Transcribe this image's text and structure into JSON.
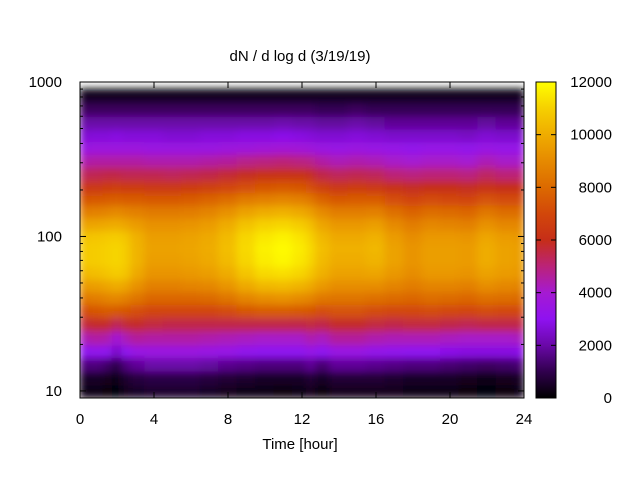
{
  "chart_data": {
    "type": "heatmap",
    "title": "dN / d log d (3/19/19)",
    "xlabel": "Time [hour]",
    "ylabel": "",
    "xlim": [
      0,
      24
    ],
    "ylim": [
      9,
      1000
    ],
    "y_scale": "log",
    "x_ticks": [
      0,
      4,
      8,
      12,
      16,
      20,
      24
    ],
    "x_tick_labels": [
      "0",
      "4",
      "8",
      "12",
      "16",
      "20",
      "24"
    ],
    "y_ticks": [
      10,
      100,
      1000
    ],
    "y_tick_labels": [
      "10",
      "100",
      "1000"
    ],
    "colorbar": {
      "range": [
        0,
        12000
      ],
      "ticks": [
        0,
        2000,
        4000,
        6000,
        8000,
        10000,
        12000
      ],
      "tick_labels": [
        "0",
        "2000",
        "4000",
        "6000",
        "8000",
        "10000",
        "12000"
      ],
      "colormap": "gnuplot-heat (black-purple-red-orange-yellow)"
    },
    "data_extent": {
      "x": [
        0,
        24
      ],
      "y": [
        9,
        900
      ]
    },
    "grid": false,
    "legend": "none",
    "y_bins": [
      10,
      12,
      15,
      18,
      22,
      27,
      33,
      40,
      48,
      58,
      70,
      85,
      100,
      120,
      145,
      175,
      210,
      255,
      310,
      375,
      450,
      545,
      660,
      800,
      900
    ],
    "x_bins": [
      0,
      1,
      1.5,
      2,
      2.5,
      3,
      4,
      5,
      6,
      7,
      8,
      9,
      10,
      11,
      12,
      12.5,
      13,
      14,
      15,
      16,
      17,
      18,
      19,
      20,
      21,
      22,
      23,
      24
    ],
    "z": [
      [
        300,
        500,
        1500,
        3000,
        4300,
        5600,
        7200,
        8400,
        9400,
        10300,
        10800,
        10800,
        10600,
        9700,
        8600,
        7400,
        6300,
        5300,
        4400,
        3500,
        2600,
        2000,
        1200,
        500,
        0
      ],
      [
        300,
        500,
        1500,
        3100,
        4500,
        5800,
        7400,
        8600,
        9600,
        10500,
        10900,
        10900,
        10700,
        9800,
        8700,
        7500,
        6400,
        5400,
        4500,
        3600,
        2700,
        2000,
        1200,
        500,
        0
      ],
      [
        200,
        400,
        1300,
        3000,
        4400,
        5800,
        7600,
        8800,
        9800,
        10700,
        11000,
        11000,
        10800,
        9900,
        8800,
        7600,
        6500,
        5500,
        4500,
        3600,
        2700,
        2000,
        1200,
        500,
        0
      ],
      [
        100,
        300,
        900,
        2400,
        3800,
        5300,
        7500,
        8900,
        10000,
        10900,
        11100,
        11100,
        10900,
        10000,
        9000,
        7700,
        6600,
        5500,
        4500,
        3600,
        2800,
        2000,
        1200,
        500,
        0
      ],
      [
        400,
        600,
        1500,
        3000,
        4300,
        5700,
        7400,
        8700,
        9800,
        10700,
        10900,
        10900,
        10700,
        9800,
        8800,
        7600,
        6500,
        5400,
        4500,
        3600,
        2700,
        2000,
        1200,
        500,
        0
      ],
      [
        500,
        800,
        1800,
        3400,
        4600,
        5800,
        7200,
        8300,
        9200,
        9900,
        10200,
        10200,
        10100,
        9500,
        8700,
        7600,
        6500,
        5400,
        4500,
        3600,
        2700,
        2000,
        1200,
        500,
        0
      ],
      [
        600,
        900,
        2000,
        3500,
        4500,
        5600,
        6900,
        7900,
        8700,
        9300,
        9600,
        9700,
        9600,
        9200,
        8500,
        7500,
        6400,
        5400,
        4400,
        3500,
        2700,
        2000,
        1200,
        500,
        0
      ],
      [
        600,
        900,
        2000,
        3500,
        4500,
        5500,
        6900,
        7900,
        8700,
        9300,
        9600,
        9700,
        9600,
        9200,
        8500,
        7500,
        6400,
        5300,
        4400,
        3500,
        2600,
        2000,
        1200,
        500,
        0
      ],
      [
        600,
        900,
        2000,
        3500,
        4500,
        5500,
        6900,
        7900,
        8800,
        9400,
        9700,
        9800,
        9700,
        9300,
        8600,
        7600,
        6500,
        5400,
        4400,
        3500,
        2600,
        2000,
        1200,
        500,
        0
      ],
      [
        500,
        800,
        1900,
        3400,
        4400,
        5500,
        6900,
        8000,
        8900,
        9600,
        9900,
        10000,
        9900,
        9500,
        8800,
        7800,
        6700,
        5500,
        4500,
        3500,
        2700,
        2000,
        1200,
        500,
        0
      ],
      [
        400,
        700,
        1700,
        3300,
        4300,
        5500,
        7100,
        8300,
        9300,
        10000,
        10400,
        10500,
        10400,
        10000,
        9200,
        8100,
        6900,
        5700,
        4600,
        3600,
        2700,
        2000,
        1200,
        500,
        0
      ],
      [
        300,
        600,
        1600,
        3100,
        4200,
        5500,
        7400,
        8800,
        9900,
        10700,
        11100,
        11200,
        11100,
        10600,
        9700,
        8500,
        7200,
        5900,
        4800,
        3700,
        2800,
        2000,
        1200,
        500,
        0
      ],
      [
        300,
        500,
        1500,
        3000,
        4100,
        5500,
        7600,
        9100,
        10300,
        11200,
        11600,
        11700,
        11500,
        11000,
        10000,
        8700,
        7400,
        6100,
        4900,
        3800,
        2800,
        2000,
        1200,
        500,
        0
      ],
      [
        200,
        500,
        1500,
        3000,
        4100,
        5500,
        7600,
        9200,
        10400,
        11300,
        11800,
        11900,
        11700,
        11100,
        10100,
        8800,
        7500,
        6200,
        5000,
        3900,
        2900,
        2100,
        1200,
        500,
        0
      ],
      [
        300,
        500,
        1500,
        3000,
        4100,
        5500,
        7500,
        9000,
        10200,
        11100,
        11500,
        11600,
        11400,
        10900,
        9900,
        8700,
        7400,
        6100,
        4900,
        3800,
        2800,
        2000,
        1200,
        500,
        0
      ],
      [
        400,
        700,
        1800,
        3300,
        4400,
        5600,
        7400,
        8800,
        9900,
        10700,
        11100,
        11200,
        11000,
        10500,
        9600,
        8400,
        7200,
        5900,
        4800,
        3700,
        2700,
        2000,
        1200,
        500,
        0
      ],
      [
        200,
        500,
        1400,
        3000,
        4200,
        5500,
        7200,
        8400,
        9400,
        10100,
        10400,
        10500,
        10300,
        9800,
        9000,
        7800,
        6700,
        5500,
        4500,
        3500,
        2600,
        1900,
        1100,
        500,
        0
      ],
      [
        400,
        700,
        1800,
        3400,
        4600,
        5800,
        7300,
        8300,
        9100,
        9700,
        10000,
        10100,
        9900,
        9400,
        8600,
        7500,
        6400,
        5300,
        4300,
        3400,
        2600,
        1900,
        1100,
        500,
        0
      ],
      [
        400,
        700,
        1800,
        3400,
        4600,
        5800,
        7300,
        8300,
        9100,
        9700,
        10000,
        10100,
        9900,
        9400,
        8600,
        7600,
        6500,
        5400,
        4400,
        3500,
        2700,
        2000,
        1200,
        500,
        0
      ],
      [
        400,
        700,
        1700,
        3200,
        4400,
        5600,
        7100,
        8200,
        9100,
        9800,
        10200,
        10300,
        10100,
        9600,
        8700,
        7600,
        6400,
        5300,
        4300,
        3400,
        2600,
        1900,
        1100,
        500,
        0
      ],
      [
        400,
        600,
        1600,
        3100,
        4300,
        5500,
        7000,
        8000,
        8800,
        9400,
        9700,
        9700,
        9500,
        9000,
        8200,
        7200,
        6100,
        5000,
        4100,
        3300,
        2500,
        1800,
        1100,
        500,
        0
      ],
      [
        300,
        500,
        1500,
        3000,
        4300,
        5600,
        7000,
        7900,
        8600,
        9100,
        9300,
        9300,
        9100,
        8600,
        7800,
        6900,
        5900,
        4900,
        4000,
        3200,
        2500,
        1800,
        1100,
        500,
        0
      ],
      [
        300,
        500,
        1500,
        3000,
        4300,
        5600,
        7100,
        8100,
        8800,
        9400,
        9600,
        9600,
        9400,
        8900,
        8100,
        7100,
        6000,
        5000,
        4100,
        3300,
        2500,
        1800,
        1100,
        500,
        0
      ],
      [
        300,
        500,
        1400,
        2900,
        4200,
        5500,
        7000,
        8000,
        8800,
        9400,
        9600,
        9600,
        9400,
        8800,
        8000,
        7000,
        6000,
        5000,
        4100,
        3300,
        2500,
        1800,
        1100,
        500,
        0
      ],
      [
        200,
        400,
        1300,
        2800,
        4100,
        5400,
        6900,
        7900,
        8700,
        9300,
        9500,
        9500,
        9300,
        8700,
        7900,
        6900,
        5900,
        4900,
        4000,
        3200,
        2400,
        1800,
        1100,
        500,
        0
      ],
      [
        100,
        300,
        1200,
        2800,
        4100,
        5500,
        7100,
        8200,
        9100,
        9700,
        10000,
        10000,
        9800,
        9200,
        8400,
        7300,
        6200,
        5200,
        4300,
        3400,
        2600,
        1900,
        1100,
        500,
        0
      ],
      [
        200,
        400,
        1300,
        2800,
        4100,
        5500,
        7000,
        8100,
        8900,
        9500,
        9700,
        9700,
        9500,
        8900,
        8100,
        7100,
        6000,
        5000,
        4100,
        3300,
        2500,
        1800,
        1100,
        500,
        0
      ],
      [
        300,
        500,
        1400,
        2900,
        4200,
        5500,
        7000,
        8000,
        8800,
        9400,
        9600,
        9600,
        9400,
        8900,
        8100,
        7100,
        6000,
        5000,
        4100,
        3300,
        2500,
        1800,
        1100,
        500,
        0
      ]
    ]
  }
}
